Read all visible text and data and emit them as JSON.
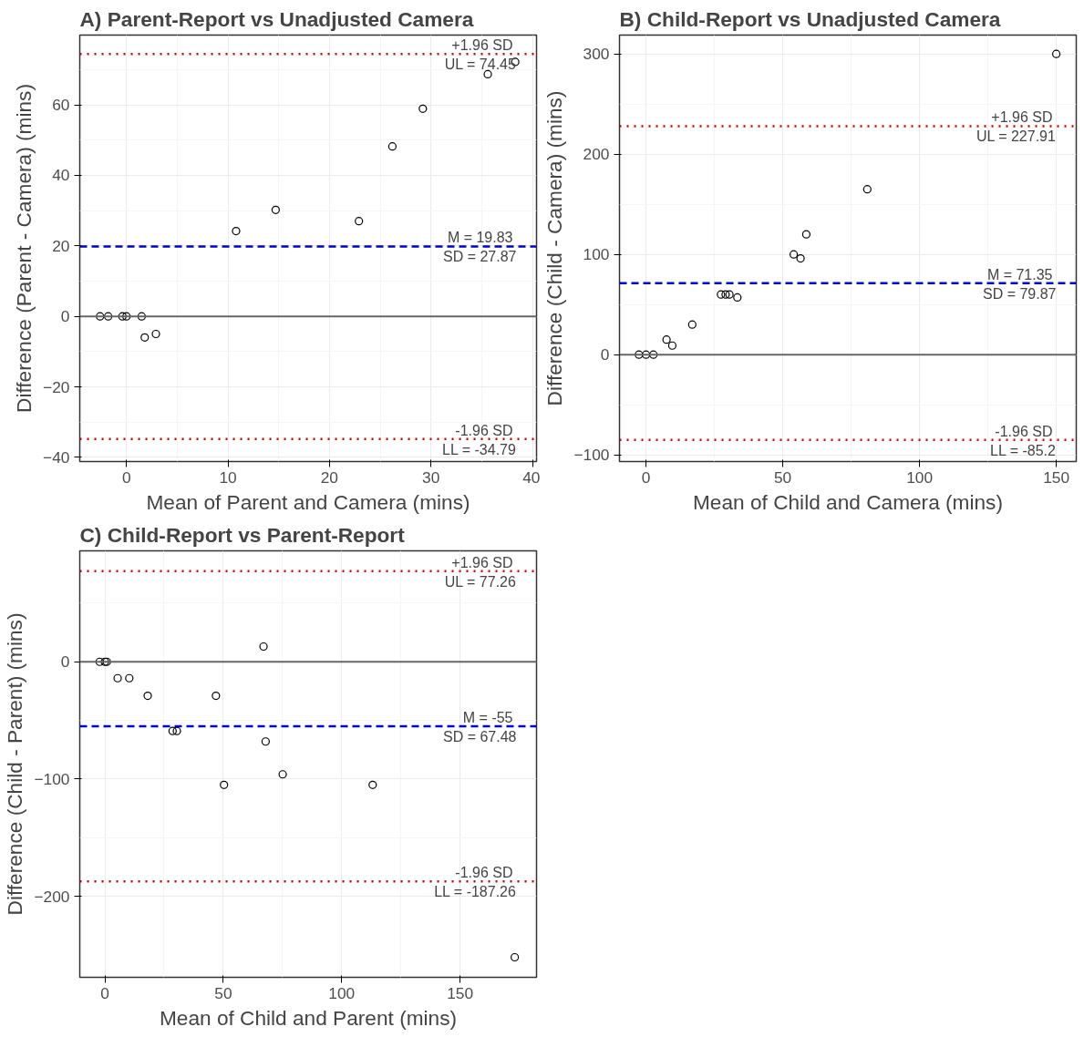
{
  "chart_data": [
    {
      "type": "scatter",
      "title": "A) Parent-Report vs Unadjusted Camera",
      "xlabel": "Mean of Parent and Camera (mins)",
      "ylabel": "Difference (Parent - Camera) (mins)",
      "series": [
        {
          "color": "#000000",
          "x": [
            -2.6,
            -1.8,
            -0.4,
            0,
            1.5,
            1.8,
            2.9,
            10.8,
            14.7,
            22.9,
            26.2,
            29.2,
            35.6,
            38.3
          ],
          "values": [
            0,
            0,
            0,
            0,
            0,
            -6,
            -5,
            24.2,
            30.2,
            27,
            48.2,
            58.9,
            68.7,
            72.2
          ]
        }
      ],
      "xlim": [
        -4.6,
        40.4
      ],
      "ylim": [
        -41.2,
        79.8
      ],
      "xticks": [
        0,
        10,
        20,
        30,
        40
      ],
      "yticks": [
        -40,
        -20,
        0,
        20,
        40,
        60
      ],
      "ref_lines": [
        {
          "axis": "y",
          "value": 0,
          "color": "#666666",
          "line_style": "solid"
        },
        {
          "axis": "y",
          "value": 74.45,
          "label": "+1.96 SD\nUL = 74.45",
          "color": "#cc0000",
          "line_style": "dotted"
        },
        {
          "axis": "y",
          "value": 19.83,
          "label": "M = 19.83\nSD = 27.87",
          "color": "#0000cc",
          "line_style": "dashed"
        },
        {
          "axis": "y",
          "value": -34.79,
          "label": "-1.96 SD\nLL = -34.79",
          "color": "#cc0000",
          "line_style": "dotted"
        }
      ],
      "grid": true,
      "marker": "circle"
    },
    {
      "type": "scatter",
      "title": "B) Child-Report vs Unadjusted Camera",
      "xlabel": "Mean of Child and Camera (mins)",
      "ylabel": "Difference (Child - Camera) (mins)",
      "series": [
        {
          "color": "#000000",
          "x": [
            -2.6,
            0,
            2.7,
            7.5,
            9.6,
            16.9,
            27.4,
            29.1,
            30.5,
            33.4,
            54,
            56.5,
            58.6,
            80.9,
            150
          ],
          "values": [
            0,
            0,
            0,
            15,
            9,
            30,
            60,
            60,
            60,
            57,
            100,
            96,
            120,
            165,
            300
          ]
        }
      ],
      "xlim": [
        -9.7,
        157.3
      ],
      "ylim": [
        -106.7,
        318.8
      ],
      "xticks": [
        0,
        50,
        100,
        150
      ],
      "yticks": [
        -100,
        0,
        100,
        200,
        300
      ],
      "ref_lines": [
        {
          "axis": "y",
          "value": 0,
          "color": "#666666",
          "line_style": "solid"
        },
        {
          "axis": "y",
          "value": 227.91,
          "label": "+1.96 SD\nUL = 227.91",
          "color": "#cc0000",
          "line_style": "dotted"
        },
        {
          "axis": "y",
          "value": 71.35,
          "label": "M = 71.35\nSD = 79.87",
          "color": "#0000cc",
          "line_style": "dashed"
        },
        {
          "axis": "y",
          "value": -85.2,
          "label": "-1.96 SD\nLL = -85.2",
          "color": "#cc0000",
          "line_style": "dotted"
        }
      ],
      "grid": true,
      "marker": "circle"
    },
    {
      "type": "scatter",
      "title": "C) Child-Report vs Parent-Report",
      "xlabel": "Mean of Child and Parent (mins)",
      "ylabel": "Difference (Child - Parent) (mins)",
      "series": [
        {
          "color": "#000000",
          "x": [
            -2.2,
            0,
            0.8,
            5.4,
            10.3,
            18.1,
            28.6,
            30.4,
            46.9,
            67,
            50.3,
            67.9,
            75.1,
            113.1,
            173.1
          ],
          "values": [
            0,
            0,
            0,
            -14,
            -14,
            -29,
            -59,
            -59,
            -29,
            13,
            -105,
            -68,
            -96,
            -105,
            -252
          ]
        }
      ],
      "xlim": [
        -10.6,
        182.3
      ],
      "ylim": [
        -269.1,
        94.6
      ],
      "xticks": [
        0,
        50,
        100,
        150
      ],
      "yticks": [
        -200,
        -100,
        0
      ],
      "ref_lines": [
        {
          "axis": "y",
          "value": 0,
          "color": "#666666",
          "line_style": "solid"
        },
        {
          "axis": "y",
          "value": 77.26,
          "label": "+1.96 SD\nUL = 77.26",
          "color": "#cc0000",
          "line_style": "dotted"
        },
        {
          "axis": "y",
          "value": -55,
          "label": "M = -55\nSD = 67.48",
          "color": "#0000cc",
          "line_style": "dashed"
        },
        {
          "axis": "y",
          "value": -187.26,
          "label": "-1.96 SD\nLL = -187.26",
          "color": "#cc0000",
          "line_style": "dotted"
        }
      ],
      "grid": true,
      "marker": "circle"
    }
  ]
}
